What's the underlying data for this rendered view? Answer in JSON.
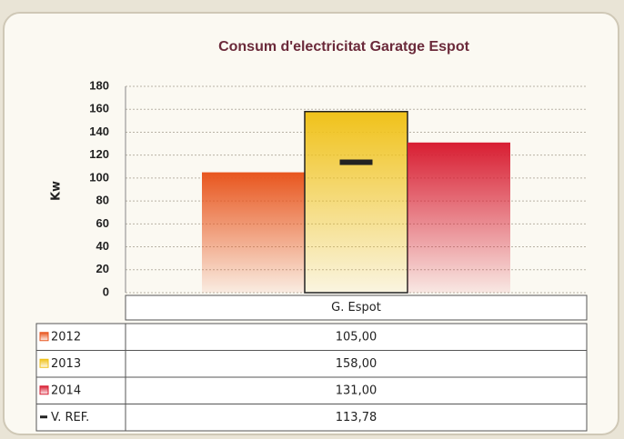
{
  "chart_data": {
    "type": "bar",
    "title": "Consum d'electricitat Garatge Espot",
    "ylabel": "Kw",
    "categories": [
      "G. Espot"
    ],
    "series": [
      {
        "name": "2012",
        "color": "#e8561e",
        "values": [
          105
        ],
        "value_labels": [
          "105,00"
        ]
      },
      {
        "name": "2013",
        "color": "#f0c21a",
        "values": [
          158
        ],
        "value_labels": [
          "158,00"
        ]
      },
      {
        "name": "2014",
        "color": "#d81e32",
        "values": [
          131
        ],
        "value_labels": [
          "131,00"
        ]
      },
      {
        "name": "V. REF.",
        "type": "marker",
        "color": "#222222",
        "values": [
          113.78
        ],
        "value_labels": [
          "113,78"
        ]
      }
    ],
    "ylim": [
      0,
      180
    ],
    "yticks": [
      0,
      20,
      40,
      60,
      80,
      100,
      120,
      140,
      160,
      180
    ],
    "grid": true
  }
}
